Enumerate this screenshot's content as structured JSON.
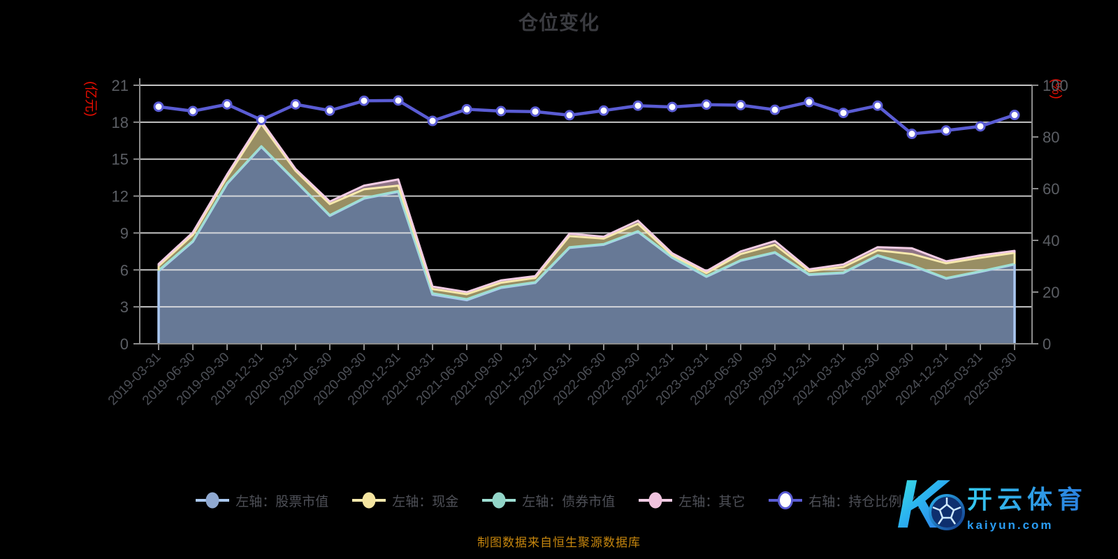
{
  "page": {
    "title": "仓位变化",
    "footer": "制图数据来自恒生聚源数据库",
    "watermark": {
      "logo_letter": "K",
      "brand_cn": "开云体育",
      "brand_url": "kaiyun.com"
    }
  },
  "colors": {
    "background": "#000000",
    "grid": "#e6e6e6",
    "axis": "#8b8b8b",
    "axis_tick_text": "#5b5e64",
    "x_tick_text": "#4c4f56",
    "title_text": "#3a3b40",
    "legend_text": "#4e5057",
    "footer_text": "#c6860e",
    "unit_text": "#e80d00",
    "ratio_line": "#5a5cd4"
  },
  "chart_data": {
    "type": "combo-stacked-area-line",
    "title": "仓位变化",
    "grid": true,
    "legend_position": "bottom",
    "categories": [
      "2019-03-31",
      "2019-06-30",
      "2019-09-30",
      "2019-12-31",
      "2020-03-31",
      "2020-06-30",
      "2020-09-30",
      "2020-12-31",
      "2021-03-31",
      "2021-06-30",
      "2021-09-30",
      "2021-12-31",
      "2022-03-31",
      "2022-06-30",
      "2022-09-30",
      "2022-12-31",
      "2023-03-31",
      "2023-06-30",
      "2023-09-30",
      "2023-12-31",
      "2024-03-31",
      "2024-06-30",
      "2024-09-30",
      "2024-12-31",
      "2025-03-31",
      "2025-06-30"
    ],
    "left_axis": {
      "unit": "(亿元)",
      "min": 0,
      "max": 21,
      "ticks": [
        0,
        3,
        6,
        9,
        12,
        15,
        18,
        21
      ]
    },
    "right_axis": {
      "unit": "(%)",
      "min": 0,
      "max": 100,
      "ticks": [
        0,
        20,
        40,
        60,
        80,
        100
      ]
    },
    "stack_order": [
      "stock",
      "bond",
      "cash",
      "other"
    ],
    "series": [
      {
        "id": "stock",
        "name": "左轴：股票市值",
        "type": "area",
        "axis": "left",
        "color": "#8fa8d0",
        "stroke": "#abc8f0",
        "fill_opacity": 0.72,
        "marker_fill": "#8fa8d0",
        "values": [
          5.9,
          8.3,
          13.0,
          16.0,
          13.2,
          10.4,
          11.8,
          12.35,
          4.0,
          3.55,
          4.55,
          4.95,
          7.8,
          8.05,
          9.1,
          7.0,
          5.45,
          6.75,
          7.4,
          5.6,
          5.75,
          7.15,
          6.35,
          5.3,
          5.85,
          6.45
        ]
      },
      {
        "id": "cash",
        "name": "左轴：现金",
        "type": "area",
        "axis": "left",
        "color": "#f5e5a0",
        "stroke": "#f7e9ad",
        "fill_opacity": 0.62,
        "marker_fill": "#f5e5a0",
        "values": [
          0.35,
          0.5,
          0.5,
          1.8,
          0.8,
          0.9,
          0.7,
          0.45,
          0.35,
          0.4,
          0.35,
          0.35,
          0.9,
          0.45,
          0.6,
          0.15,
          0.25,
          0.5,
          0.6,
          0.25,
          0.45,
          0.4,
          0.9,
          1.2,
          1.1,
          0.9
        ]
      },
      {
        "id": "bond",
        "name": "左轴：债券市值",
        "type": "area",
        "axis": "left",
        "color": "#92d5c8",
        "stroke": "#9edfd3",
        "fill_opacity": 0.7,
        "marker_fill": "#92d5c8",
        "values": [
          0.07,
          0.05,
          0.05,
          0.05,
          0.05,
          0.05,
          0.05,
          0.05,
          0.1,
          0.08,
          0.06,
          0.05,
          0.05,
          0.05,
          0.05,
          0.04,
          0.04,
          0.04,
          0.04,
          0.05,
          0.04,
          0.04,
          0.04,
          0.04,
          0.04,
          0.04
        ]
      },
      {
        "id": "other",
        "name": "左轴：其它",
        "type": "area",
        "axis": "left",
        "color": "#efc2dd",
        "stroke": "#f2cce4",
        "fill_opacity": 0.6,
        "marker_fill": "#efc2dd",
        "values": [
          0.16,
          0.2,
          0.2,
          0.25,
          0.15,
          0.2,
          0.3,
          0.5,
          0.2,
          0.17,
          0.19,
          0.15,
          0.2,
          0.15,
          0.25,
          0.16,
          0.16,
          0.21,
          0.31,
          0.15,
          0.21,
          0.26,
          0.47,
          0.16,
          0.19,
          0.16
        ]
      },
      {
        "id": "ratio",
        "name": "右轴：持仓比例(%)",
        "type": "line",
        "axis": "right",
        "color": "#5a5cd4",
        "stroke": "#5a5cd4",
        "marker_fill": "#ffffff",
        "values": [
          91.7,
          90.0,
          92.6,
          86.6,
          92.6,
          90.2,
          94.0,
          94.1,
          86.2,
          90.7,
          90.0,
          89.8,
          88.4,
          90.2,
          92.1,
          91.6,
          92.5,
          92.3,
          90.5,
          93.5,
          89.3,
          92.1,
          81.2,
          82.5,
          84.1,
          88.5
        ]
      }
    ]
  }
}
